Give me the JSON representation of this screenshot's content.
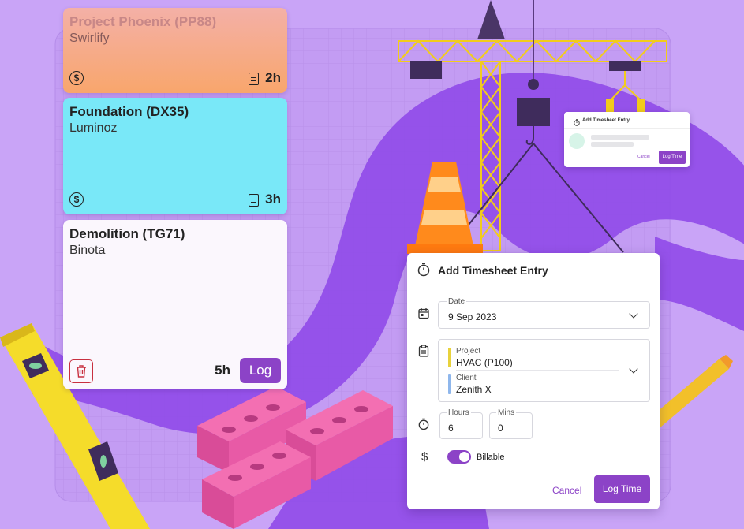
{
  "cards": [
    {
      "title": "Project Phoenix (PP88)",
      "client": "Swirlify",
      "hours": "2h"
    },
    {
      "title": "Foundation (DX35)",
      "client": "Luminoz",
      "hours": "3h"
    },
    {
      "title": "Demolition (TG71)",
      "client": "Binota",
      "hours": "5h",
      "log_label": "Log"
    }
  ],
  "dialog": {
    "title": "Add Timesheet Entry",
    "date_label": "Date",
    "date_value": "9 Sep 2023",
    "project_label": "Project",
    "project_value": "HVAC (P100)",
    "client_label": "Client",
    "client_value": "Zenith X",
    "hours_label": "Hours",
    "hours_value": "6",
    "mins_label": "Mins",
    "mins_value": "0",
    "billable_label": "Billable",
    "billable_on": true,
    "cancel_label": "Cancel",
    "submit_label": "Log Time"
  },
  "mini_dialog": {
    "title": "Add Timesheet Entry",
    "cancel_label": "Cancel",
    "submit_label": "Log Time"
  },
  "colors": {
    "background": "#c9a4f7",
    "accent": "#8c43c7",
    "card1": "#f4a27e",
    "card2": "#79e8f8",
    "card3": "#ffffff",
    "project_bar": "#e8d23c",
    "client_bar": "#8fb7ec"
  },
  "icons": [
    "dollar-icon",
    "document-icon",
    "trash-icon",
    "stopwatch-icon",
    "calendar-icon",
    "clipboard-icon",
    "chevron-down-icon"
  ]
}
